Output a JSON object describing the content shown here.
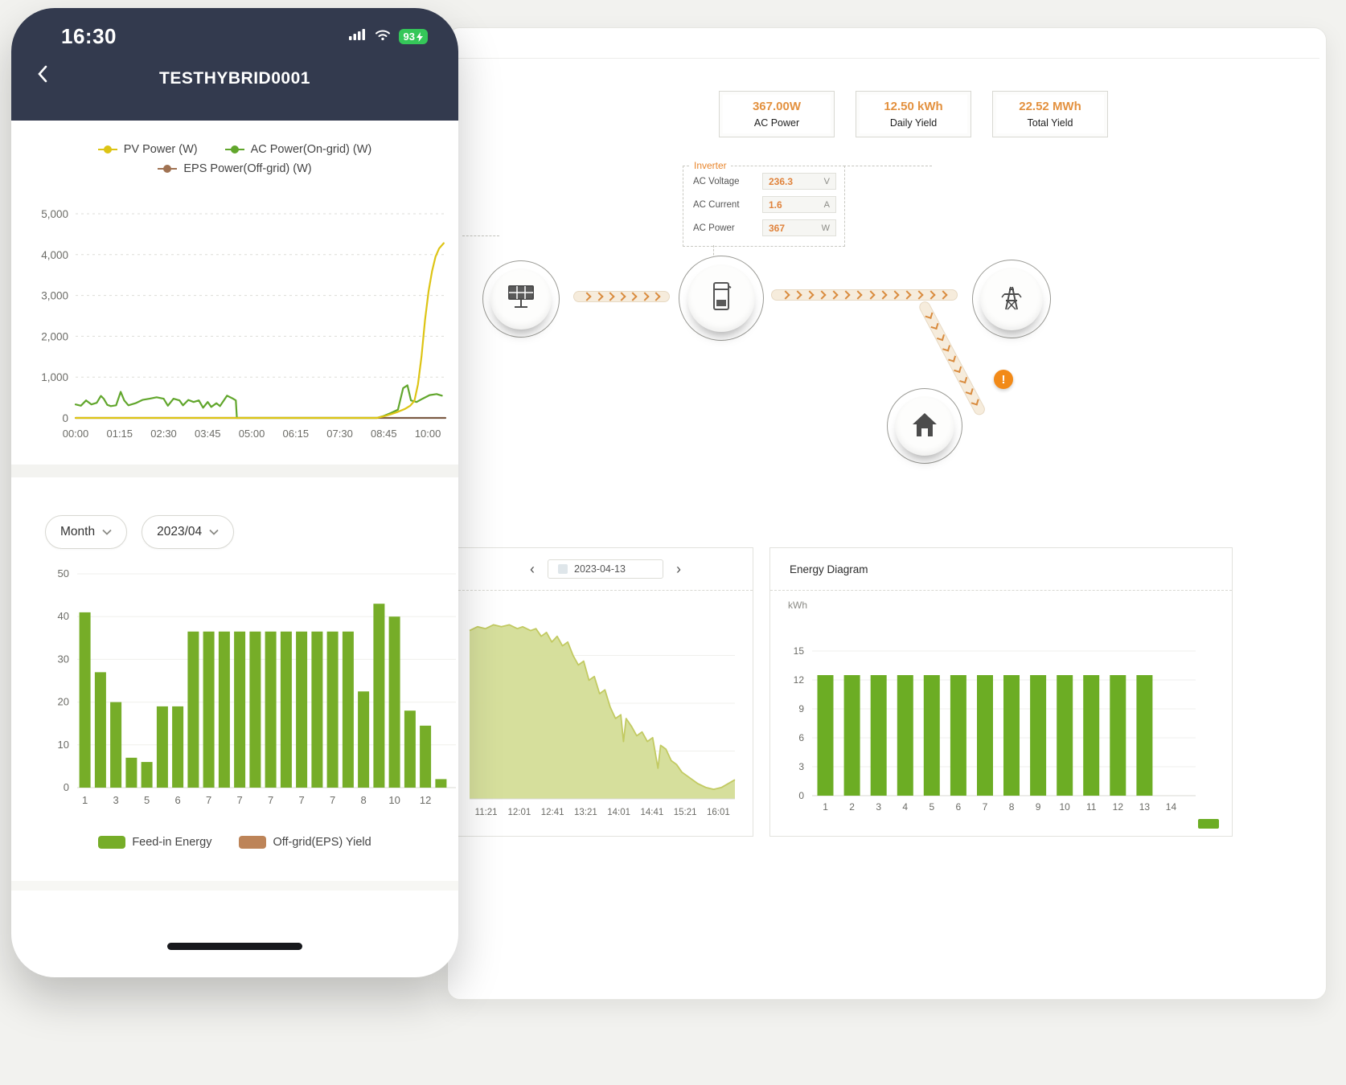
{
  "colors": {
    "navy": "#333a4e",
    "app_green": "#76ad28",
    "accent_orange": "#e3913f",
    "warning_orange": "#f28a18"
  },
  "phone": {
    "status": {
      "time": "16:30",
      "battery_percent": "93"
    },
    "nav": {
      "title": "TESTHYBRID0001"
    },
    "controls": {
      "period_label": "Month",
      "month_label": "2023/04"
    }
  },
  "desktop": {
    "stats": [
      {
        "value": "367.00W",
        "label": "AC Power"
      },
      {
        "value": "12.50 kWh",
        "label": "Daily Yield"
      },
      {
        "value": "22.52 MWh",
        "label": "Total Yield"
      }
    ],
    "inverter": {
      "title": "Inverter",
      "rows": [
        {
          "label": "AC Voltage",
          "value": "236.3",
          "unit": "V"
        },
        {
          "label": "AC Current",
          "value": "1.6",
          "unit": "A"
        },
        {
          "label": "AC Power",
          "value": "367",
          "unit": "W"
        }
      ]
    },
    "flow": {
      "warning": "!"
    },
    "daily_panel": {
      "prev": "‹",
      "date": "2023-04-13",
      "next": "›"
    }
  },
  "chart_data": [
    {
      "id": "pv-power-line",
      "type": "line",
      "title": "Inverter power curves",
      "x_range": [
        0,
        10.5
      ],
      "ylim": [
        0,
        5000
      ],
      "y_ticks": [
        0,
        1000,
        2000,
        3000,
        4000,
        5000
      ],
      "y_tick_labels": [
        "0",
        "1,000",
        "2,000",
        "3,000",
        "4,000",
        "5,000"
      ],
      "x_ticks": [
        "00:00",
        "01:15",
        "02:30",
        "03:45",
        "05:00",
        "06:15",
        "07:30",
        "08:45",
        "10:00"
      ],
      "x_tick_pos": [
        0,
        1.25,
        2.5,
        3.75,
        5,
        6.25,
        7.5,
        8.75,
        10
      ],
      "legend": [
        {
          "label": "PV Power (W)",
          "color": "#ddc414"
        },
        {
          "label": "AC Power(On-grid) (W)",
          "color": "#61a62c"
        },
        {
          "label": "EPS Power(Off-grid) (W)",
          "color": "#a07252"
        }
      ],
      "series": [
        {
          "name": "PV Power (W)",
          "color": "#ddc414",
          "points": [
            [
              0,
              0
            ],
            [
              8.55,
              0
            ],
            [
              8.75,
              40
            ],
            [
              8.95,
              90
            ],
            [
              9.15,
              150
            ],
            [
              9.35,
              220
            ],
            [
              9.5,
              300
            ],
            [
              9.62,
              420
            ],
            [
              9.72,
              820
            ],
            [
              9.82,
              1500
            ],
            [
              9.92,
              2400
            ],
            [
              10.02,
              3100
            ],
            [
              10.12,
              3600
            ],
            [
              10.22,
              3950
            ],
            [
              10.32,
              4150
            ],
            [
              10.45,
              4280
            ]
          ]
        },
        {
          "name": "AC Power(On-grid) (W)",
          "color": "#61a62c",
          "points": [
            [
              0,
              330
            ],
            [
              0.15,
              300
            ],
            [
              0.3,
              430
            ],
            [
              0.45,
              330
            ],
            [
              0.6,
              370
            ],
            [
              0.72,
              540
            ],
            [
              0.8,
              470
            ],
            [
              0.9,
              320
            ],
            [
              1,
              290
            ],
            [
              1.15,
              310
            ],
            [
              1.28,
              640
            ],
            [
              1.38,
              430
            ],
            [
              1.5,
              310
            ],
            [
              1.7,
              360
            ],
            [
              1.9,
              440
            ],
            [
              2.1,
              470
            ],
            [
              2.3,
              505
            ],
            [
              2.5,
              470
            ],
            [
              2.62,
              300
            ],
            [
              2.78,
              470
            ],
            [
              2.95,
              430
            ],
            [
              3.05,
              310
            ],
            [
              3.2,
              440
            ],
            [
              3.35,
              390
            ],
            [
              3.5,
              430
            ],
            [
              3.62,
              250
            ],
            [
              3.75,
              390
            ],
            [
              3.85,
              270
            ],
            [
              4,
              360
            ],
            [
              4.1,
              290
            ],
            [
              4.3,
              545
            ],
            [
              4.45,
              480
            ],
            [
              4.55,
              430
            ],
            [
              4.58,
              0
            ],
            [
              8.55,
              0
            ],
            [
              8.75,
              50
            ],
            [
              8.95,
              120
            ],
            [
              9.15,
              200
            ],
            [
              9.3,
              730
            ],
            [
              9.42,
              800
            ],
            [
              9.52,
              430
            ],
            [
              9.68,
              390
            ],
            [
              9.85,
              470
            ],
            [
              10.05,
              560
            ],
            [
              10.25,
              585
            ],
            [
              10.4,
              545
            ]
          ]
        },
        {
          "name": "EPS Power(Off-grid) (W)",
          "color": "#7c5b43",
          "points": [
            [
              0,
              0
            ],
            [
              10.5,
              0
            ]
          ]
        }
      ]
    },
    {
      "id": "feedin-bar",
      "type": "bar",
      "title": "Monthly feed-in energy",
      "ylim": [
        0,
        50
      ],
      "y_ticks": [
        0,
        10,
        20,
        30,
        40,
        50
      ],
      "y_tick_labels": [
        "0",
        "10",
        "20",
        "30",
        "40",
        "50"
      ],
      "values": [
        41,
        27,
        20,
        7,
        6,
        19,
        19,
        36.5,
        36.5,
        36.5,
        36.5,
        36.5,
        36.5,
        36.5,
        36.5,
        36.5,
        36.5,
        36.5,
        22.5,
        43,
        40,
        18,
        14.5,
        2
      ],
      "x_tick_labels": [
        "1",
        "3",
        "5",
        "6",
        "7",
        "7",
        "7",
        "7",
        "7",
        "8",
        "10",
        "12"
      ],
      "label_every": 2,
      "bar_color": "#76ad28",
      "legend": [
        {
          "label": "Feed-in Energy",
          "color": "#76ad28"
        },
        {
          "label": "Off-grid(EPS) Yield",
          "color": "#bd8458"
        }
      ]
    },
    {
      "id": "daily-area",
      "type": "area",
      "title": "Daily power curve",
      "fill": "#d4dd97",
      "line": "#c2ca62",
      "x_ticks": [
        "11:21",
        "12:01",
        "12:41",
        "13:21",
        "14:01",
        "14:41",
        "15:21",
        "16:01"
      ],
      "points": [
        [
          0,
          0.88
        ],
        [
          0.03,
          0.9
        ],
        [
          0.06,
          0.89
        ],
        [
          0.09,
          0.91
        ],
        [
          0.12,
          0.9
        ],
        [
          0.15,
          0.91
        ],
        [
          0.18,
          0.89
        ],
        [
          0.2,
          0.9
        ],
        [
          0.23,
          0.88
        ],
        [
          0.25,
          0.89
        ],
        [
          0.27,
          0.85
        ],
        [
          0.29,
          0.87
        ],
        [
          0.31,
          0.82
        ],
        [
          0.33,
          0.85
        ],
        [
          0.35,
          0.8
        ],
        [
          0.37,
          0.82
        ],
        [
          0.39,
          0.75
        ],
        [
          0.41,
          0.7
        ],
        [
          0.43,
          0.72
        ],
        [
          0.45,
          0.62
        ],
        [
          0.47,
          0.64
        ],
        [
          0.49,
          0.55
        ],
        [
          0.51,
          0.57
        ],
        [
          0.53,
          0.48
        ],
        [
          0.55,
          0.42
        ],
        [
          0.57,
          0.44
        ],
        [
          0.58,
          0.3
        ],
        [
          0.59,
          0.42
        ],
        [
          0.61,
          0.38
        ],
        [
          0.63,
          0.33
        ],
        [
          0.65,
          0.35
        ],
        [
          0.67,
          0.3
        ],
        [
          0.69,
          0.32
        ],
        [
          0.71,
          0.16
        ],
        [
          0.72,
          0.28
        ],
        [
          0.74,
          0.26
        ],
        [
          0.76,
          0.2
        ],
        [
          0.78,
          0.18
        ],
        [
          0.8,
          0.14
        ],
        [
          0.83,
          0.11
        ],
        [
          0.86,
          0.08
        ],
        [
          0.89,
          0.06
        ],
        [
          0.92,
          0.05
        ],
        [
          0.95,
          0.06
        ],
        [
          1,
          0.1
        ]
      ]
    },
    {
      "id": "energy-bar",
      "type": "bar",
      "title": "Energy Diagram",
      "ylabel": "kWh",
      "ylim": [
        0,
        15
      ],
      "y_ticks": [
        0,
        3,
        6,
        9,
        12,
        15
      ],
      "y_tick_labels": [
        "0",
        "3",
        "6",
        "9",
        "12",
        "15"
      ],
      "categories": [
        "1",
        "2",
        "3",
        "4",
        "5",
        "6",
        "7",
        "8",
        "9",
        "10",
        "11",
        "12",
        "13",
        "14"
      ],
      "values": [
        12.5,
        12.5,
        12.5,
        12.5,
        12.5,
        12.5,
        12.5,
        12.5,
        12.5,
        12.5,
        12.5,
        12.5,
        12.5
      ],
      "slots": 14,
      "bar_color": "#6cad24"
    }
  ]
}
